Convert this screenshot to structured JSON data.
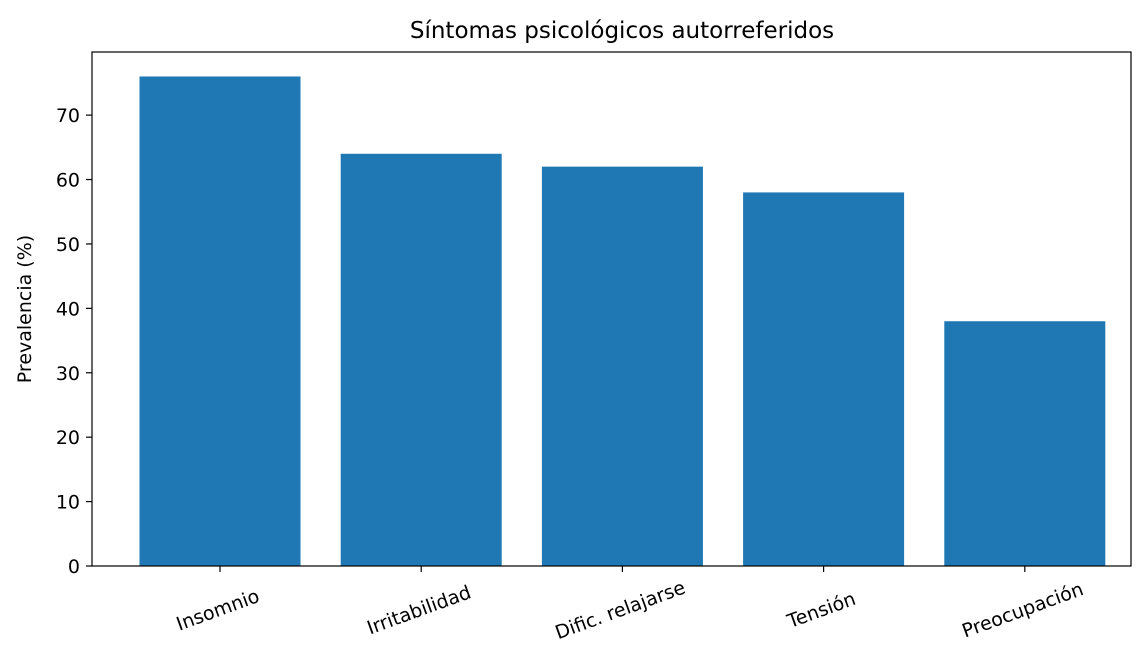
{
  "chart_data": {
    "type": "bar",
    "title": "Síntomas psicológicos autorreferidos",
    "xlabel": "",
    "ylabel": "Prevalencia (%)",
    "categories": [
      "Insomnio",
      "Irritabilidad",
      "Dific. relajarse",
      "Tensión",
      "Preocupación"
    ],
    "values": [
      76,
      64,
      62,
      58,
      38
    ],
    "ylim": [
      0,
      79.8
    ],
    "yticks": [
      0,
      10,
      20,
      30,
      40,
      50,
      60,
      70
    ],
    "bar_color": "#1f77b4",
    "grid": false,
    "xtick_rotation_deg": -20
  }
}
